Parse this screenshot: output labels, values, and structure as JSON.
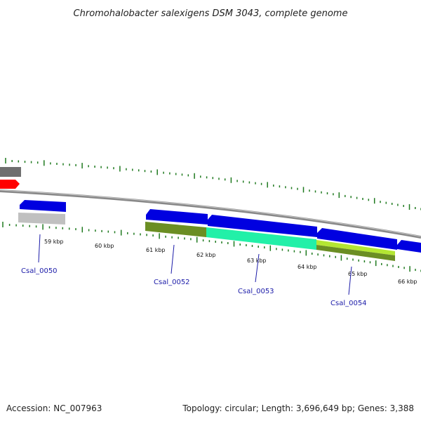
{
  "title": "Chromohalobacter salexigens DSM 3043, complete genome",
  "footer": {
    "accession": "Accession: NC_007963",
    "summary": "Topology: circular; Length: 3,696,649 bp; Genes: 3,388"
  },
  "colors": {
    "backbone": "#8a8a8a",
    "tick": "#1f7a1f",
    "gene_forward": "#0000e0",
    "gene_label": "#1a1aa8",
    "cds_olive": "#6b8e23",
    "cds_cyan": "#22f0a8",
    "cds_lime": "#b4e633",
    "gray_feature": "#c0c0c0",
    "red_feature": "#ff0000"
  },
  "kbp_labels": [
    "59 kbp",
    "60 kbp",
    "61 kbp",
    "62 kbp",
    "63 kbp",
    "64 kbp",
    "65 kbp",
    "66 kbp"
  ],
  "gene_labels": [
    "Csal_0050",
    "Csal_0052",
    "Csal_0053",
    "Csal_0054"
  ]
}
